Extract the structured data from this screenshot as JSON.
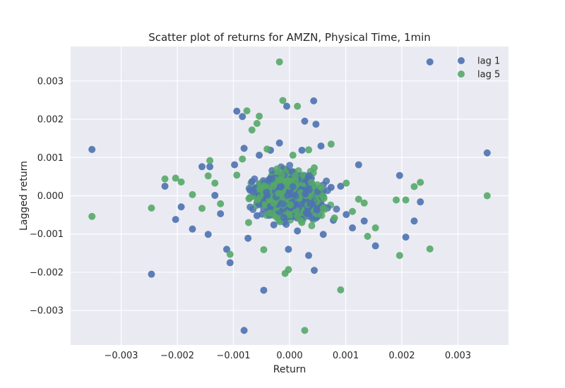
{
  "chart_data": {
    "type": "scatter",
    "title": "Scatter plot of returns for AMZN, Physical Time, 1min",
    "xlabel": "Return",
    "ylabel": "Lagged return",
    "xlim": [
      -0.0039,
      0.0039
    ],
    "ylim": [
      -0.0039,
      0.0039
    ],
    "xticks": [
      -0.003,
      -0.002,
      -0.001,
      0.0,
      0.001,
      0.002,
      0.003
    ],
    "xtick_labels": [
      "−0.003",
      "−0.002",
      "−0.001",
      "0.000",
      "0.001",
      "0.002",
      "0.003"
    ],
    "yticks": [
      -0.003,
      -0.002,
      -0.001,
      0.0,
      0.001,
      0.002,
      0.003
    ],
    "ytick_labels": [
      "−0.003",
      "−0.002",
      "−0.001",
      "0.000",
      "0.001",
      "0.002",
      "0.003"
    ],
    "grid": true,
    "legend_position": "top-right",
    "background": "#EAEAF2",
    "series": [
      {
        "name": "lag 1",
        "color": "#4C72B0",
        "points": [
          [
            -0.00352,
            0.00121
          ],
          [
            -0.00246,
            -0.00205
          ],
          [
            -0.00222,
            0.00025
          ],
          [
            -0.00203,
            -0.00062
          ],
          [
            -0.00193,
            -0.00029
          ],
          [
            -0.00173,
            -0.00087
          ],
          [
            -0.00156,
            0.00076
          ],
          [
            -0.00145,
            -0.00101
          ],
          [
            -0.00142,
            0.00076
          ],
          [
            -0.00133,
            1e-05
          ],
          [
            -0.00123,
            -0.00047
          ],
          [
            -0.00112,
            -0.0014
          ],
          [
            -0.00106,
            -0.00175
          ],
          [
            -0.00098,
            0.00081
          ],
          [
            -0.00094,
            0.00221
          ],
          [
            -0.00084,
            0.00207
          ],
          [
            -0.00081,
            -0.00352
          ],
          [
            -0.00081,
            0.00124
          ],
          [
            -0.00074,
            -0.00111
          ],
          [
            -0.00067,
            0.00037
          ],
          [
            -0.00058,
            -0.00052
          ],
          [
            -0.00054,
            0.00106
          ],
          [
            -0.00046,
            -0.00247
          ],
          [
            -0.0004,
            1e-05
          ],
          [
            -0.00034,
            0.00119
          ],
          [
            -0.00028,
            -0.00076
          ],
          [
            -0.00018,
            0.00138
          ],
          [
            -0.0001,
            -0.00057
          ],
          [
            -5e-05,
            0.00234
          ],
          [
            -2e-05,
            -0.0014
          ],
          [
            6e-05,
            0.00024
          ],
          [
            0.00014,
            -0.00092
          ],
          [
            0.00022,
            0.00119
          ],
          [
            0.00027,
            0.00195
          ],
          [
            0.00034,
            -0.00156
          ],
          [
            0.00043,
            0.00248
          ],
          [
            0.00044,
            -0.00195
          ],
          [
            0.00047,
            0.00187
          ],
          [
            0.00056,
            0.0013
          ],
          [
            0.0006,
            -0.00101
          ],
          [
            0.00074,
            0.00022
          ],
          [
            0.00078,
            -0.00064
          ],
          [
            0.00091,
            0.00025
          ],
          [
            0.00101,
            -0.00049
          ],
          [
            0.00112,
            -0.00084
          ],
          [
            0.00123,
            0.00081
          ],
          [
            0.00133,
            -0.00066
          ],
          [
            0.00153,
            -0.00131
          ],
          [
            0.00196,
            0.00053
          ],
          [
            0.00207,
            -0.00108
          ],
          [
            0.00222,
            -0.00066
          ],
          [
            0.00233,
            -0.00016
          ],
          [
            0.0025,
            0.0035
          ],
          [
            0.00352,
            0.00112
          ]
        ]
      },
      {
        "name": "lag 5",
        "color": "#55A868",
        "points": [
          [
            -0.00352,
            -0.00054
          ],
          [
            -0.00246,
            -0.00032
          ],
          [
            -0.00222,
            0.00044
          ],
          [
            -0.00203,
            0.00046
          ],
          [
            -0.00193,
            0.00036
          ],
          [
            -0.00173,
            3e-05
          ],
          [
            -0.00156,
            -0.00033
          ],
          [
            -0.00145,
            0.00052
          ],
          [
            -0.00142,
            0.00092
          ],
          [
            -0.00133,
            0.00033
          ],
          [
            -0.00123,
            -0.00021
          ],
          [
            -0.00106,
            -0.00153
          ],
          [
            -0.00094,
            0.00054
          ],
          [
            -0.00084,
            0.00096
          ],
          [
            -0.00076,
            0.00222
          ],
          [
            -0.00073,
            -0.0007
          ],
          [
            -0.00067,
            0.00172
          ],
          [
            -0.00058,
            0.00189
          ],
          [
            -0.00054,
            0.00208
          ],
          [
            -0.00046,
            -0.00141
          ],
          [
            -0.0004,
            0.00122
          ],
          [
            -0.00028,
            -0.0002
          ],
          [
            -0.00018,
            0.0035
          ],
          [
            -0.00012,
            0.00249
          ],
          [
            -8e-05,
            -0.00203
          ],
          [
            -2e-05,
            -0.00193
          ],
          [
            6e-05,
            0.00106
          ],
          [
            0.00014,
            0.00234
          ],
          [
            0.00022,
            -0.0007
          ],
          [
            0.00027,
            -0.00352
          ],
          [
            0.00034,
            0.0012
          ],
          [
            0.00044,
            0.00073
          ],
          [
            0.00056,
            0.00022
          ],
          [
            0.0006,
            -0.00032
          ],
          [
            0.00074,
            0.00135
          ],
          [
            0.0008,
            -0.00058
          ],
          [
            0.00091,
            -0.00246
          ],
          [
            0.00101,
            0.00033
          ],
          [
            0.00112,
            -0.00041
          ],
          [
            0.00123,
            -9e-05
          ],
          [
            0.00133,
            -0.00019
          ],
          [
            0.00139,
            -0.00106
          ],
          [
            0.00153,
            -0.00084
          ],
          [
            0.0019,
            -0.00011
          ],
          [
            0.00196,
            -0.00156
          ],
          [
            0.00207,
            -0.00011
          ],
          [
            0.00222,
            0.00024
          ],
          [
            0.00233,
            0.00035
          ],
          [
            0.0025,
            -0.00139
          ],
          [
            0.00352,
            0.0
          ]
        ]
      }
    ]
  }
}
